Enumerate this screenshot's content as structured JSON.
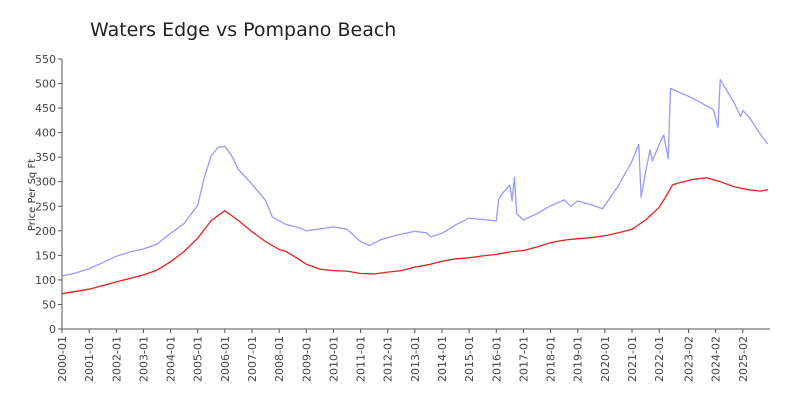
{
  "chart_data": {
    "type": "line",
    "title": "Waters Edge vs Pompano Beach",
    "xlabel": "",
    "ylabel": "Price Per Sq Ft",
    "ylim": [
      0,
      550
    ],
    "yticks": [
      0,
      50,
      100,
      150,
      200,
      250,
      300,
      350,
      400,
      450,
      500,
      550
    ],
    "xticks": [
      "2000-01",
      "2001-01",
      "2002-01",
      "2003-01",
      "2004-01",
      "2005-01",
      "2006-01",
      "2007-01",
      "2008-01",
      "2009-01",
      "2010-01",
      "2011-01",
      "2012-01",
      "2013-01",
      "2014-01",
      "2015-01",
      "2016-01",
      "2017-01",
      "2018-01",
      "2019-01",
      "2020-01",
      "2021-01",
      "2022-01",
      "2023-02",
      "2024-02",
      "2025-02"
    ],
    "legend": "none",
    "grid": false,
    "series": [
      {
        "color": "#9999ff",
        "points": [
          [
            "2000-01",
            108
          ],
          [
            "2000-07",
            114
          ],
          [
            "2001-01",
            123
          ],
          [
            "2001-07",
            135
          ],
          [
            "2002-01",
            148
          ],
          [
            "2002-07",
            157
          ],
          [
            "2003-01",
            163
          ],
          [
            "2003-07",
            173
          ],
          [
            "2004-01",
            195
          ],
          [
            "2004-07",
            215
          ],
          [
            "2005-01",
            252
          ],
          [
            "2005-04",
            310
          ],
          [
            "2005-07",
            353
          ],
          [
            "2005-10",
            370
          ],
          [
            "2006-01",
            372
          ],
          [
            "2006-04",
            353
          ],
          [
            "2006-07",
            325
          ],
          [
            "2007-01",
            295
          ],
          [
            "2007-07",
            262
          ],
          [
            "2007-10",
            228
          ],
          [
            "2008-04",
            213
          ],
          [
            "2008-10",
            206
          ],
          [
            "2009-01",
            200
          ],
          [
            "2009-07",
            204
          ],
          [
            "2010-01",
            208
          ],
          [
            "2010-07",
            203
          ],
          [
            "2011-01",
            178
          ],
          [
            "2011-05",
            170
          ],
          [
            "2011-10",
            182
          ],
          [
            "2012-04",
            190
          ],
          [
            "2013-01",
            199
          ],
          [
            "2013-06",
            196
          ],
          [
            "2013-08",
            188
          ],
          [
            "2014-01",
            195
          ],
          [
            "2014-07",
            212
          ],
          [
            "2015-01",
            226
          ],
          [
            "2015-07",
            223
          ],
          [
            "2016-01",
            220
          ],
          [
            "2016-02",
            264
          ],
          [
            "2016-04",
            278
          ],
          [
            "2016-07",
            293
          ],
          [
            "2016-08",
            261
          ],
          [
            "2016-09",
            309
          ],
          [
            "2016-10",
            235
          ],
          [
            "2017-01",
            222
          ],
          [
            "2017-07",
            235
          ],
          [
            "2018-01",
            251
          ],
          [
            "2018-07",
            263
          ],
          [
            "2018-10",
            250
          ],
          [
            "2019-01",
            261
          ],
          [
            "2019-07",
            253
          ],
          [
            "2019-12",
            245
          ],
          [
            "2020-01",
            252
          ],
          [
            "2020-07",
            292
          ],
          [
            "2021-01",
            342
          ],
          [
            "2021-04",
            376
          ],
          [
            "2021-05",
            268
          ],
          [
            "2021-07",
            320
          ],
          [
            "2021-09",
            365
          ],
          [
            "2021-10",
            342
          ],
          [
            "2022-01",
            376
          ],
          [
            "2022-03",
            395
          ],
          [
            "2022-05",
            347
          ],
          [
            "2022-06",
            490
          ],
          [
            "2022-10",
            482
          ],
          [
            "2023-04",
            470
          ],
          [
            "2023-09",
            457
          ],
          [
            "2024-01",
            447
          ],
          [
            "2024-03",
            410
          ],
          [
            "2024-04",
            508
          ],
          [
            "2024-10",
            462
          ],
          [
            "2025-01",
            433
          ],
          [
            "2025-02",
            445
          ],
          [
            "2025-05",
            430
          ],
          [
            "2025-10",
            395
          ],
          [
            "2026-01",
            377
          ]
        ]
      },
      {
        "color": "#e82020",
        "points": [
          [
            "2000-01",
            72
          ],
          [
            "2001-01",
            81
          ],
          [
            "2002-01",
            96
          ],
          [
            "2003-01",
            110
          ],
          [
            "2003-07",
            120
          ],
          [
            "2004-01",
            137
          ],
          [
            "2004-07",
            158
          ],
          [
            "2005-01",
            185
          ],
          [
            "2005-07",
            221
          ],
          [
            "2006-01",
            241
          ],
          [
            "2006-07",
            221
          ],
          [
            "2007-01",
            198
          ],
          [
            "2007-07",
            178
          ],
          [
            "2008-01",
            162
          ],
          [
            "2008-04",
            158
          ],
          [
            "2008-07",
            150
          ],
          [
            "2009-01",
            132
          ],
          [
            "2009-07",
            122
          ],
          [
            "2010-01",
            119
          ],
          [
            "2010-07",
            118
          ],
          [
            "2011-01",
            113
          ],
          [
            "2011-07",
            112
          ],
          [
            "2012-01",
            116
          ],
          [
            "2012-07",
            119
          ],
          [
            "2013-01",
            126
          ],
          [
            "2013-07",
            131
          ],
          [
            "2014-01",
            138
          ],
          [
            "2014-07",
            143
          ],
          [
            "2015-01",
            145
          ],
          [
            "2015-07",
            149
          ],
          [
            "2016-01",
            152
          ],
          [
            "2016-07",
            157
          ],
          [
            "2017-01",
            160
          ],
          [
            "2017-07",
            167
          ],
          [
            "2018-01",
            176
          ],
          [
            "2018-07",
            181
          ],
          [
            "2019-01",
            184
          ],
          [
            "2019-07",
            186
          ],
          [
            "2020-01",
            190
          ],
          [
            "2020-07",
            196
          ],
          [
            "2021-01",
            203
          ],
          [
            "2021-07",
            222
          ],
          [
            "2022-01",
            248
          ],
          [
            "2022-04",
            270
          ],
          [
            "2022-07",
            294
          ],
          [
            "2022-10",
            298
          ],
          [
            "2023-04",
            305
          ],
          [
            "2023-10",
            308
          ],
          [
            "2024-04",
            300
          ],
          [
            "2024-10",
            290
          ],
          [
            "2025-04",
            284
          ],
          [
            "2025-10",
            281
          ],
          [
            "2026-01",
            284
          ]
        ]
      }
    ]
  }
}
